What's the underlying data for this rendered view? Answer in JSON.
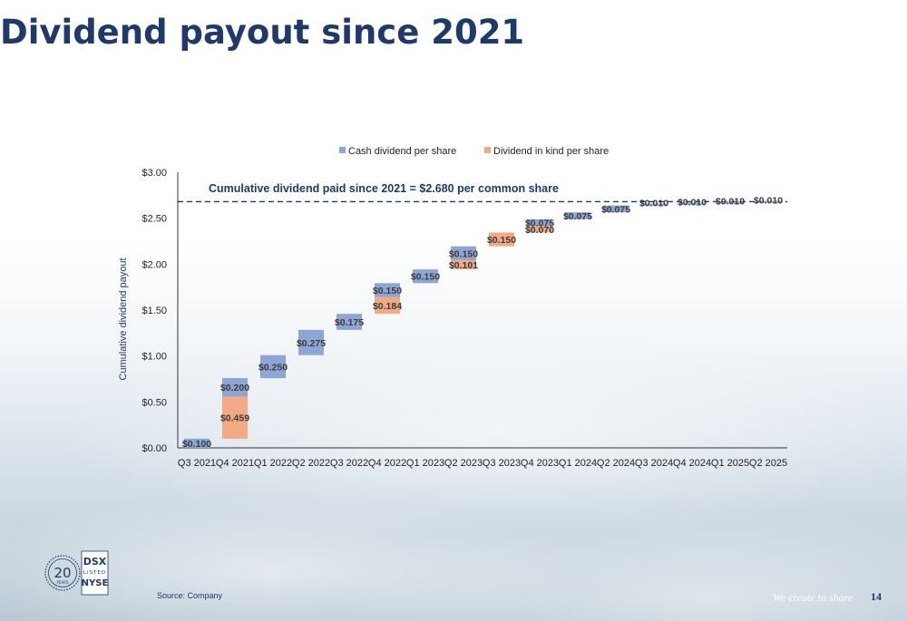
{
  "page": {
    "title": "Dividend payout since 2021",
    "source": "Source: Company",
    "tagline": "We create to share",
    "page_number": "14"
  },
  "logo": {
    "years_number": "20",
    "years_label": "YEARS",
    "ticker": "DSX",
    "listed_label": "LISTED",
    "exchange": "NYSE"
  },
  "colors": {
    "cash": "#8ea6d6",
    "kind": "#f2a984",
    "text": "#1f3a68"
  },
  "chart_data": {
    "type": "bar",
    "subtype": "stacked-waterfall",
    "ylabel": "Cumulative dividend payout",
    "ylim": [
      0,
      3
    ],
    "yticks": [
      "$0.00",
      "$0.50",
      "$1.00",
      "$1.50",
      "$2.00",
      "$2.50",
      "$3.00"
    ],
    "legend_position": "top-center",
    "annotation": "Cumulative dividend paid since 2021 = $2.680 per common share",
    "cumulative_total": 2.68,
    "categories": [
      "Q3 2021",
      "Q4 2021",
      "Q1 2022",
      "Q2 2022",
      "Q3 2022",
      "Q4 2022",
      "Q1 2023",
      "Q2 2023",
      "Q3 2023",
      "Q4 2023",
      "Q1 2024",
      "Q2 2024",
      "Q3 2024",
      "Q4 2024",
      "Q1 2025",
      "Q2 2025"
    ],
    "series": [
      {
        "name": "Cash dividend per share",
        "values": [
          0.1,
          0.2,
          0.25,
          0.275,
          0.175,
          0.15,
          0.15,
          0.15,
          0,
          0.075,
          0.075,
          0.075,
          0.01,
          0.01,
          0.01,
          0.01
        ],
        "labels": [
          "$0.100",
          "$0.200",
          "$0.250",
          "$0.275",
          "$0.175",
          "$0.150",
          "$0.150",
          "$0.150",
          "",
          "$0.075",
          "$0.075",
          "$0.075",
          "$0.010",
          "$0.010",
          "$0.010",
          "$0.010"
        ]
      },
      {
        "name": "Dividend in kind per share",
        "values": [
          0,
          0.459,
          0,
          0,
          0,
          0.184,
          0,
          0.101,
          0.15,
          0.07,
          0,
          0,
          0,
          0,
          0,
          0
        ],
        "labels": [
          "",
          "$0.459",
          "",
          "",
          "",
          "$0.184",
          "",
          "$0.101",
          "$0.150",
          "$0.070",
          "",
          "",
          "",
          "",
          "",
          ""
        ]
      }
    ]
  }
}
